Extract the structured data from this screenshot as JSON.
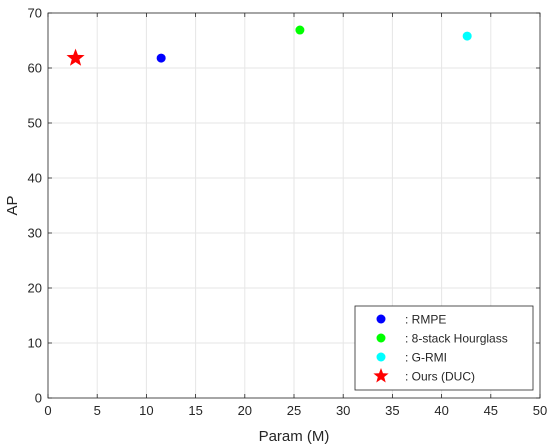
{
  "chart_data": {
    "type": "scatter",
    "title": "",
    "xlabel": "Param (M)",
    "ylabel": "AP",
    "xlim": [
      0,
      50
    ],
    "ylim": [
      0,
      70
    ],
    "x_ticks": [
      0,
      5,
      10,
      15,
      20,
      25,
      30,
      35,
      40,
      45,
      50
    ],
    "y_ticks": [
      0,
      10,
      20,
      30,
      40,
      50,
      60,
      70
    ],
    "grid": true,
    "legend_position": "bottom-right",
    "series": [
      {
        "name": ": RMPE",
        "marker": "circle",
        "color": "#0000ff",
        "points": [
          {
            "x": 11.5,
            "y": 61.8
          }
        ]
      },
      {
        "name": ": 8-stack Hourglass",
        "marker": "circle",
        "color": "#00ff00",
        "points": [
          {
            "x": 25.6,
            "y": 66.9
          }
        ]
      },
      {
        "name": ": G-RMI",
        "marker": "circle",
        "color": "#00ffff",
        "points": [
          {
            "x": 42.6,
            "y": 65.8
          }
        ]
      },
      {
        "name": ": Ours (DUC)",
        "marker": "star",
        "color": "#ff0000",
        "points": [
          {
            "x": 2.8,
            "y": 61.8
          }
        ]
      }
    ]
  }
}
